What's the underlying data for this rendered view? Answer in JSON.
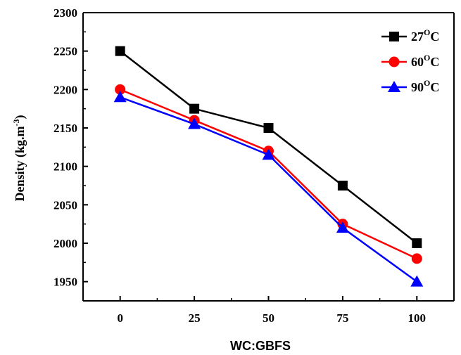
{
  "chart_data": {
    "type": "line",
    "x": [
      0,
      25,
      50,
      75,
      100
    ],
    "xticks": [
      "0",
      "25",
      "50",
      "75",
      "100"
    ],
    "xlabel": "WC:GBFS",
    "ylabel": "Density (kg.m",
    "ylabel_sup": "-3",
    "ylabel_end": ")",
    "ylim": [
      1925,
      2300
    ],
    "yticks": [
      1950,
      2000,
      2050,
      2100,
      2150,
      2200,
      2250,
      2300
    ],
    "grid": false,
    "legend": "top-right",
    "series": [
      {
        "name": "27°C",
        "label_main": "27",
        "label_sup": "O",
        "label_end": "C",
        "color": "#000000",
        "marker": "square",
        "values": [
          2250,
          2175,
          2150,
          2075,
          2000
        ]
      },
      {
        "name": "60°C",
        "label_main": "60",
        "label_sup": "O",
        "label_end": "C",
        "color": "#ff0000",
        "marker": "circle",
        "values": [
          2200,
          2160,
          2120,
          2025,
          1980
        ]
      },
      {
        "name": "90°C",
        "label_main": "90",
        "label_sup": "O",
        "label_end": "C",
        "color": "#0000ff",
        "marker": "triangle",
        "values": [
          2190,
          2155,
          2115,
          2020,
          1950
        ]
      }
    ]
  }
}
